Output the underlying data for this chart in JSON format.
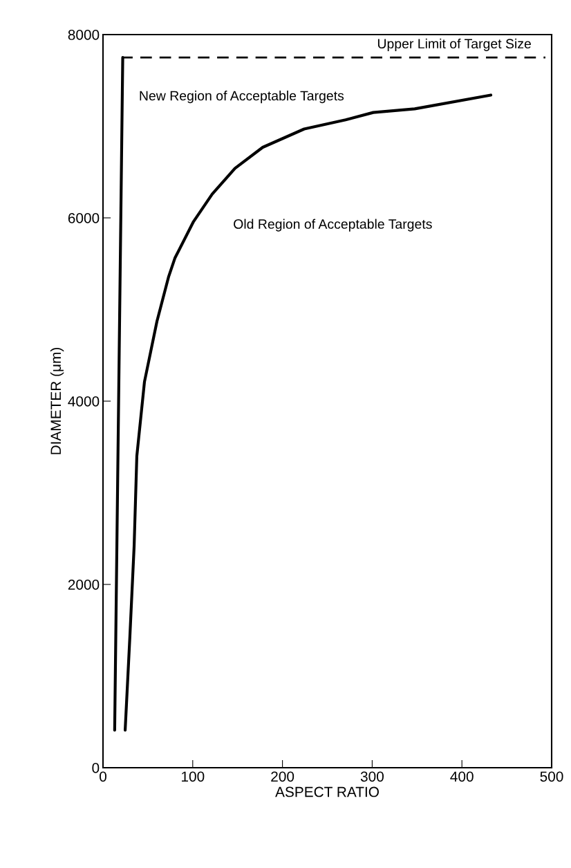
{
  "chart_data": {
    "type": "line",
    "xlabel": "ASPECT RATIO",
    "ylabel": "DIAMETER (μm)",
    "xlim": [
      0,
      500
    ],
    "ylim": [
      0,
      8000
    ],
    "xticks": [
      0,
      100,
      200,
      300,
      400,
      500
    ],
    "yticks": [
      0,
      2000,
      4000,
      6000,
      8000
    ],
    "grid": false,
    "legend": false,
    "series": [
      {
        "color": "#000000",
        "x": [
          13,
          22
        ],
        "values": [
          410,
          7750
        ]
      },
      {
        "color": "#000000",
        "line_style": "dashed",
        "x": [
          22,
          493
        ],
        "values": [
          7750,
          7750
        ]
      },
      {
        "color": "#000000",
        "x": [
          24.7,
          30,
          34.7,
          37.7,
          46.2,
          60.1,
          73.2,
          80.1,
          100.9,
          121.7,
          147.1,
          178,
          224.2,
          270.4,
          301.2,
          347.4,
          432.2
        ],
        "values": [
          410,
          1440,
          2420,
          3400,
          4210,
          4870,
          5360,
          5560,
          5960,
          6260,
          6540,
          6770,
          6970,
          7070,
          7150,
          7190,
          7340
        ]
      }
    ],
    "annotations": [
      "Upper Limit of Target Size",
      "New Region of Acceptable Targets",
      "Old Region of Acceptable Targets"
    ]
  }
}
